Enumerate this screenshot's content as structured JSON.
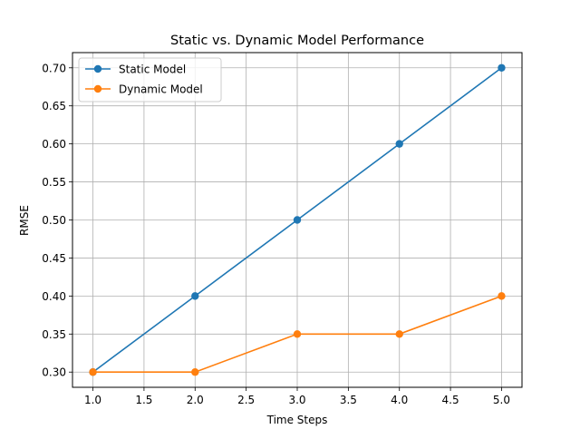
{
  "chart_data": {
    "type": "line",
    "title": "Static vs. Dynamic Model Performance",
    "xlabel": "Time Steps",
    "ylabel": "RMSE",
    "x": [
      1.0,
      2.0,
      3.0,
      4.0,
      5.0
    ],
    "xlim": [
      0.8,
      5.2
    ],
    "ylim": [
      0.28,
      0.72
    ],
    "xticks": [
      1.0,
      1.5,
      2.0,
      2.5,
      3.0,
      3.5,
      4.0,
      4.5,
      5.0
    ],
    "yticks": [
      0.3,
      0.35,
      0.4,
      0.45,
      0.5,
      0.55,
      0.6,
      0.65,
      0.7
    ],
    "grid": true,
    "legend": "top-left",
    "series": [
      {
        "name": "Static Model",
        "color": "#1f77b4",
        "marker": "circle",
        "values": [
          0.3,
          0.4,
          0.5,
          0.6,
          0.7
        ]
      },
      {
        "name": "Dynamic Model",
        "color": "#ff7f0e",
        "marker": "circle",
        "values": [
          0.3,
          0.3,
          0.35,
          0.35,
          0.4
        ]
      }
    ]
  }
}
